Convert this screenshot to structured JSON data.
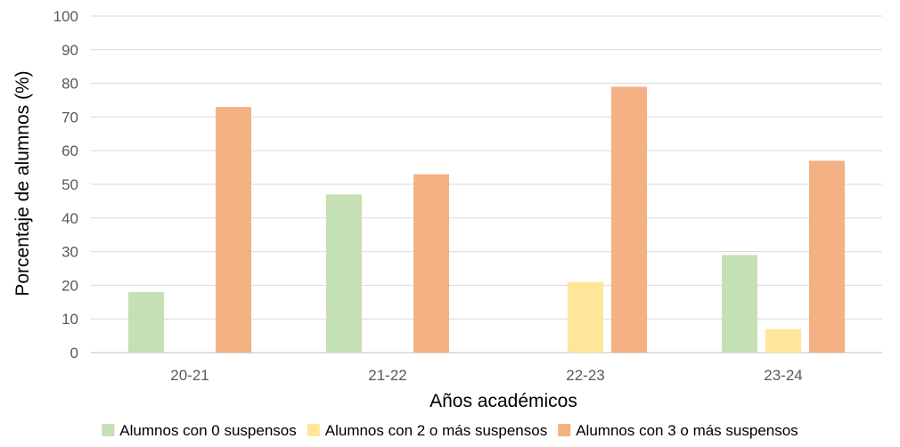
{
  "chart_data": {
    "type": "bar",
    "title": "",
    "xlabel": "Años académicos",
    "ylabel": "Porcentaje de alumnos (%)",
    "ylim": [
      0,
      100
    ],
    "yticks": [
      "0",
      "10",
      "20",
      "30",
      "40",
      "50",
      "60",
      "70",
      "80",
      "90",
      "100"
    ],
    "categories": [
      "20-21",
      "21-22",
      "22-23",
      "23-24"
    ],
    "series": [
      {
        "name": "Alumnos con 0 suspensos",
        "values": [
          18,
          47,
          0,
          29
        ],
        "color": "#c5e0b4"
      },
      {
        "name": "Alumnos con 2 o más suspensos",
        "values": [
          0,
          0,
          21,
          7
        ],
        "color": "#ffe699"
      },
      {
        "name": "Alumnos con 3 o más suspensos",
        "values": [
          73,
          53,
          79,
          57
        ],
        "color": "#f4b183"
      }
    ],
    "grid": true,
    "legend": "bottom"
  }
}
